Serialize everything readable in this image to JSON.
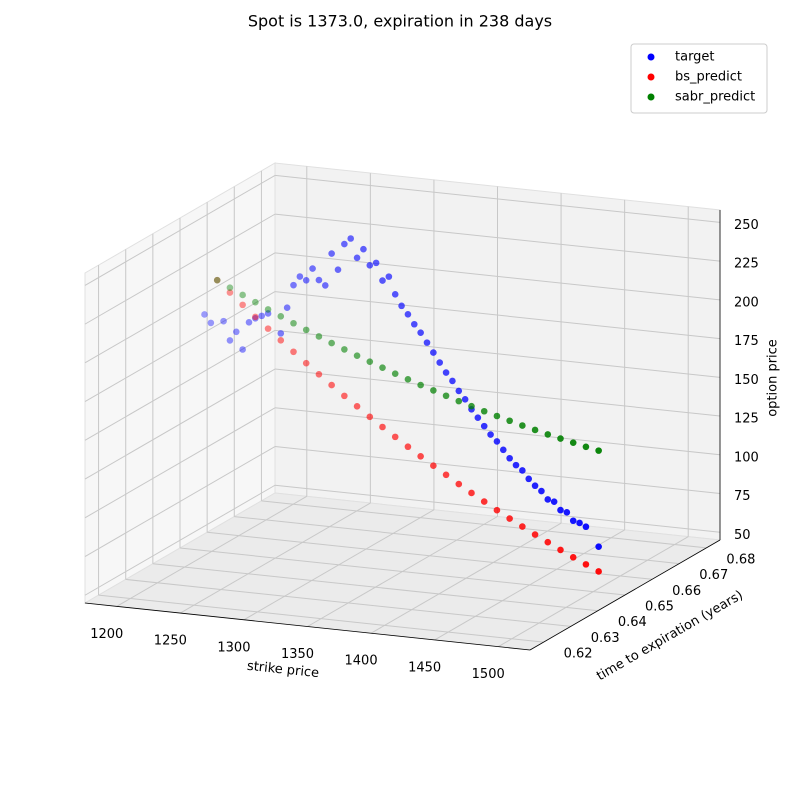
{
  "chart_data": {
    "type": "scatter3d",
    "title": "Spot is 1373.0, expiration in 238 days",
    "xlabel": "strike price",
    "ylabel": "time to expiration (years)",
    "zlabel": "option price",
    "xlim": [
      1175,
      1525
    ],
    "xticks": [
      1200,
      1250,
      1300,
      1350,
      1400,
      1450,
      1500
    ],
    "ylim": [
      0.615,
      0.685
    ],
    "yticks": [
      0.62,
      0.63,
      0.64,
      0.65,
      0.66,
      0.67,
      0.68
    ],
    "zlim": [
      45,
      258
    ],
    "zticks": [
      50,
      75,
      100,
      125,
      150,
      175,
      200,
      225,
      250
    ],
    "grid": true,
    "legend": "upper right",
    "series": [
      {
        "name": "target",
        "color": "#0000ff",
        "x": [
          1190,
          1195,
          1205,
          1210,
          1215,
          1220,
          1225,
          1230,
          1235,
          1240,
          1250,
          1255,
          1260,
          1265,
          1270,
          1275,
          1280,
          1285,
          1290,
          1295,
          1300,
          1305,
          1310,
          1315,
          1320,
          1325,
          1330,
          1335,
          1340,
          1345,
          1350,
          1355,
          1360,
          1365,
          1370,
          1375,
          1380,
          1385,
          1390,
          1395,
          1400,
          1405,
          1410,
          1415,
          1420,
          1425,
          1430,
          1435,
          1440,
          1445,
          1450,
          1455,
          1460,
          1465,
          1470,
          1475,
          1480,
          1485,
          1490,
          1500
        ],
        "y": [
          0.652,
          0.652,
          0.652,
          0.652,
          0.652,
          0.652,
          0.652,
          0.652,
          0.652,
          0.652,
          0.652,
          0.652,
          0.652,
          0.652,
          0.652,
          0.652,
          0.652,
          0.652,
          0.652,
          0.652,
          0.652,
          0.652,
          0.652,
          0.652,
          0.652,
          0.652,
          0.652,
          0.652,
          0.652,
          0.652,
          0.652,
          0.652,
          0.652,
          0.652,
          0.652,
          0.652,
          0.652,
          0.652,
          0.652,
          0.652,
          0.652,
          0.652,
          0.652,
          0.652,
          0.652,
          0.652,
          0.652,
          0.652,
          0.652,
          0.652,
          0.652,
          0.652,
          0.652,
          0.652,
          0.652,
          0.652,
          0.652,
          0.652,
          0.652,
          0.652
        ],
        "z": [
          195,
          190,
          192,
          180,
          186,
          175,
          193,
          196,
          198,
          200,
          188,
          205,
          220,
          226,
          224,
          232,
          225,
          222,
          243,
          233,
          250,
          254,
          242,
          248,
          238,
          240,
          229,
          232,
          221,
          214,
          209,
          203,
          198,
          192,
          186,
          180,
          174,
          169,
          163,
          158,
          152,
          147,
          142,
          137,
          133,
          128,
          123,
          119,
          116,
          111,
          107,
          104,
          99,
          98,
          93,
          92,
          87,
          86,
          84,
          72
        ]
      },
      {
        "name": "bs_predict",
        "color": "#ff0000",
        "x": [
          1200,
          1210,
          1220,
          1230,
          1240,
          1250,
          1260,
          1270,
          1280,
          1290,
          1300,
          1310,
          1320,
          1330,
          1340,
          1350,
          1360,
          1370,
          1380,
          1390,
          1400,
          1410,
          1420,
          1430,
          1440,
          1450,
          1460,
          1470,
          1480,
          1490,
          1500
        ],
        "y": [
          0.652,
          0.652,
          0.652,
          0.652,
          0.652,
          0.652,
          0.652,
          0.652,
          0.652,
          0.652,
          0.652,
          0.652,
          0.652,
          0.652,
          0.652,
          0.652,
          0.652,
          0.652,
          0.652,
          0.652,
          0.652,
          0.652,
          0.652,
          0.652,
          0.652,
          0.652,
          0.652,
          0.652,
          0.652,
          0.652,
          0.652
        ],
        "z": [
          218,
          210.9,
          203.8,
          196.9,
          190.2,
          183.5,
          177,
          170.5,
          164.2,
          158.1,
          152,
          146.1,
          140.2,
          134.5,
          129,
          123.5,
          118.2,
          113,
          108,
          102.9,
          98,
          93.3,
          88.6,
          84.1,
          79.8,
          75.5,
          71.4,
          67.3,
          63.4,
          59.7,
          56
        ]
      },
      {
        "name": "sabr_predict",
        "color": "#008000",
        "x": [
          1200,
          1210,
          1220,
          1230,
          1240,
          1250,
          1260,
          1270,
          1280,
          1290,
          1300,
          1310,
          1320,
          1330,
          1340,
          1350,
          1360,
          1370,
          1380,
          1390,
          1400,
          1410,
          1420,
          1430,
          1440,
          1450,
          1460,
          1470,
          1480,
          1490,
          1500
        ],
        "y": [
          0.652,
          0.652,
          0.652,
          0.652,
          0.652,
          0.652,
          0.652,
          0.652,
          0.652,
          0.652,
          0.652,
          0.652,
          0.652,
          0.652,
          0.652,
          0.652,
          0.652,
          0.652,
          0.652,
          0.652,
          0.652,
          0.652,
          0.652,
          0.652,
          0.652,
          0.652,
          0.652,
          0.652,
          0.652,
          0.652,
          0.652
        ],
        "z": [
          218,
          214,
          210.2,
          206.4,
          202.6,
          199,
          195.4,
          192,
          188.6,
          185.2,
          182,
          178.8,
          175.8,
          172.8,
          169.8,
          167,
          164.2,
          161.6,
          159,
          156.4,
          154,
          151.6,
          149.4,
          147.2,
          145,
          143,
          141,
          139.2,
          137.4,
          135.6,
          134
        ]
      }
    ]
  }
}
